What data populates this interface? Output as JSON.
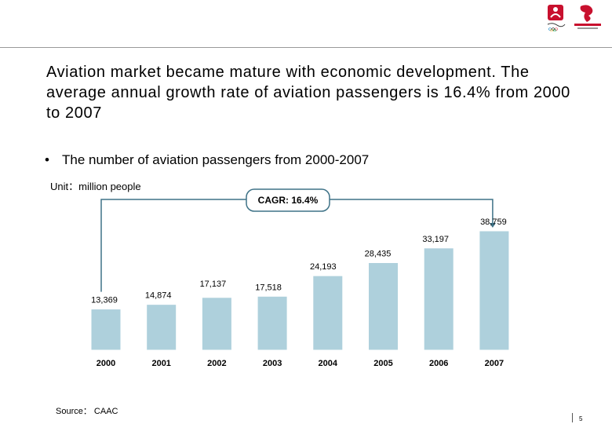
{
  "slide": {
    "title": "Aviation market became mature with economic development. The average annual growth rate of aviation passengers is 16.4% from 2000 to 2007",
    "bullet_symbol": "•",
    "bullet_text": "The number of aviation passengers from 2000-2007",
    "unit": "Unit：million people",
    "source": "Source： CAAC",
    "page_number": "5"
  },
  "colors": {
    "bar": "#aed0dc",
    "bar_edge": "#ffffff",
    "connector": "#3e7287",
    "logo_red": "#c8102e"
  },
  "chart_data": {
    "type": "bar",
    "categories": [
      "2000",
      "2001",
      "2002",
      "2003",
      "2004",
      "2005",
      "2006",
      "2007"
    ],
    "values": [
      13369,
      14874,
      17137,
      17518,
      24193,
      28435,
      33197,
      38759
    ],
    "value_labels": [
      "13,369",
      "14,874",
      "17,137",
      "17,518",
      "24,193",
      "28,435",
      "33,197",
      "38,759"
    ],
    "title": "",
    "xlabel": "",
    "ylabel": "million people",
    "ylim": [
      0,
      40000
    ],
    "annotation": "CAGR: 16.4%"
  }
}
